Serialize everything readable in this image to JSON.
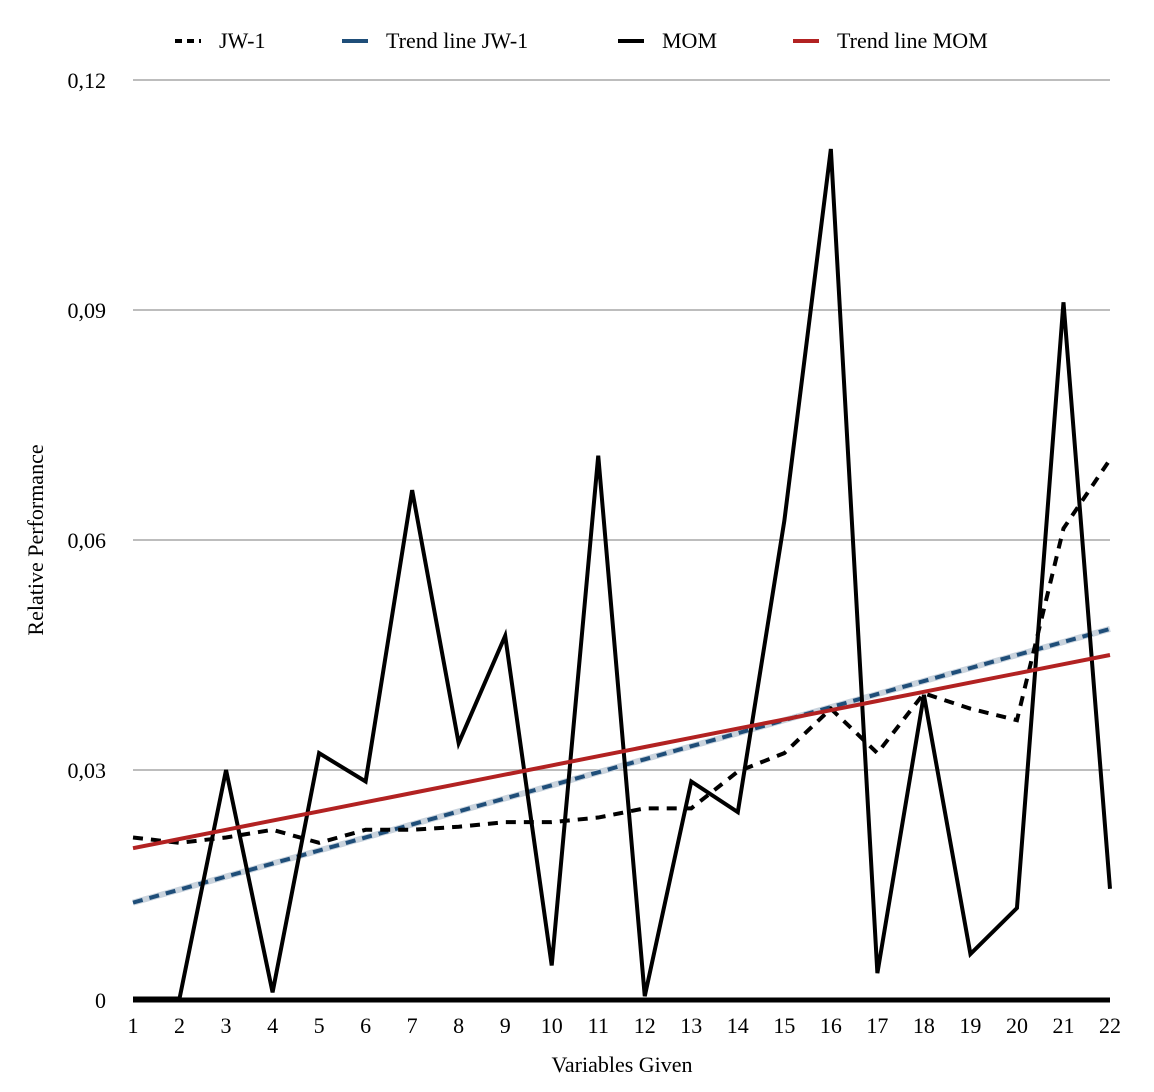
{
  "chart_data": {
    "type": "line",
    "title": "",
    "xlabel": "Variables Given",
    "ylabel": "Relative Performance",
    "x": [
      1,
      2,
      3,
      4,
      5,
      6,
      7,
      8,
      9,
      10,
      11,
      12,
      13,
      14,
      15,
      16,
      17,
      18,
      19,
      20,
      21,
      22
    ],
    "xlim": [
      1,
      22
    ],
    "ylim": [
      0,
      0.12
    ],
    "y_ticks": [
      0,
      0.03,
      0.06,
      0.09,
      0.12
    ],
    "y_tick_labels": [
      "0",
      "0,03",
      "0,06",
      "0,09",
      "0,12"
    ],
    "x_tick_labels": [
      "1",
      "2",
      "3",
      "4",
      "5",
      "6",
      "7",
      "8",
      "9",
      "10",
      "11",
      "12",
      "13",
      "14",
      "15",
      "16",
      "17",
      "18",
      "19",
      "20",
      "21",
      "22"
    ],
    "grid": true,
    "legend_position": "top",
    "series": [
      {
        "name": "JW-1",
        "color": "#000000",
        "style": "dashed",
        "values": [
          0.0212,
          0.0205,
          0.0212,
          0.0222,
          0.0205,
          0.0222,
          0.0222,
          0.0226,
          0.0232,
          0.0232,
          0.0238,
          0.025,
          0.025,
          0.0298,
          0.0322,
          0.038,
          0.0322,
          0.04,
          0.038,
          0.0365,
          0.0615,
          0.0705
        ]
      },
      {
        "name": "Trend line JW-1",
        "color": "#1f4e79",
        "style": "dashed-trend",
        "values": [
          0.0127,
          0.0144,
          0.0161,
          0.0178,
          0.0195,
          0.0212,
          0.0229,
          0.0246,
          0.0263,
          0.028,
          0.0297,
          0.0314,
          0.0331,
          0.0348,
          0.0365,
          0.0382,
          0.0399,
          0.0416,
          0.0433,
          0.045,
          0.0467,
          0.0484
        ]
      },
      {
        "name": "MOM",
        "color": "#000000",
        "style": "solid",
        "values": [
          0.0002,
          0.0002,
          0.03,
          0.001,
          0.0322,
          0.0285,
          0.0665,
          0.0335,
          0.0475,
          0.0045,
          0.071,
          0.0005,
          0.0285,
          0.0245,
          0.0625,
          0.111,
          0.0035,
          0.0398,
          0.006,
          0.012,
          0.091,
          0.0145
        ]
      },
      {
        "name": "Trend line MOM",
        "color": "#b22222",
        "style": "solid-trend",
        "values": [
          0.0198,
          0.021,
          0.0222,
          0.0234,
          0.0246,
          0.0258,
          0.027,
          0.0282,
          0.0294,
          0.0306,
          0.0318,
          0.033,
          0.0342,
          0.0354,
          0.0366,
          0.0378,
          0.039,
          0.0402,
          0.0414,
          0.0426,
          0.0438,
          0.045
        ]
      }
    ]
  }
}
